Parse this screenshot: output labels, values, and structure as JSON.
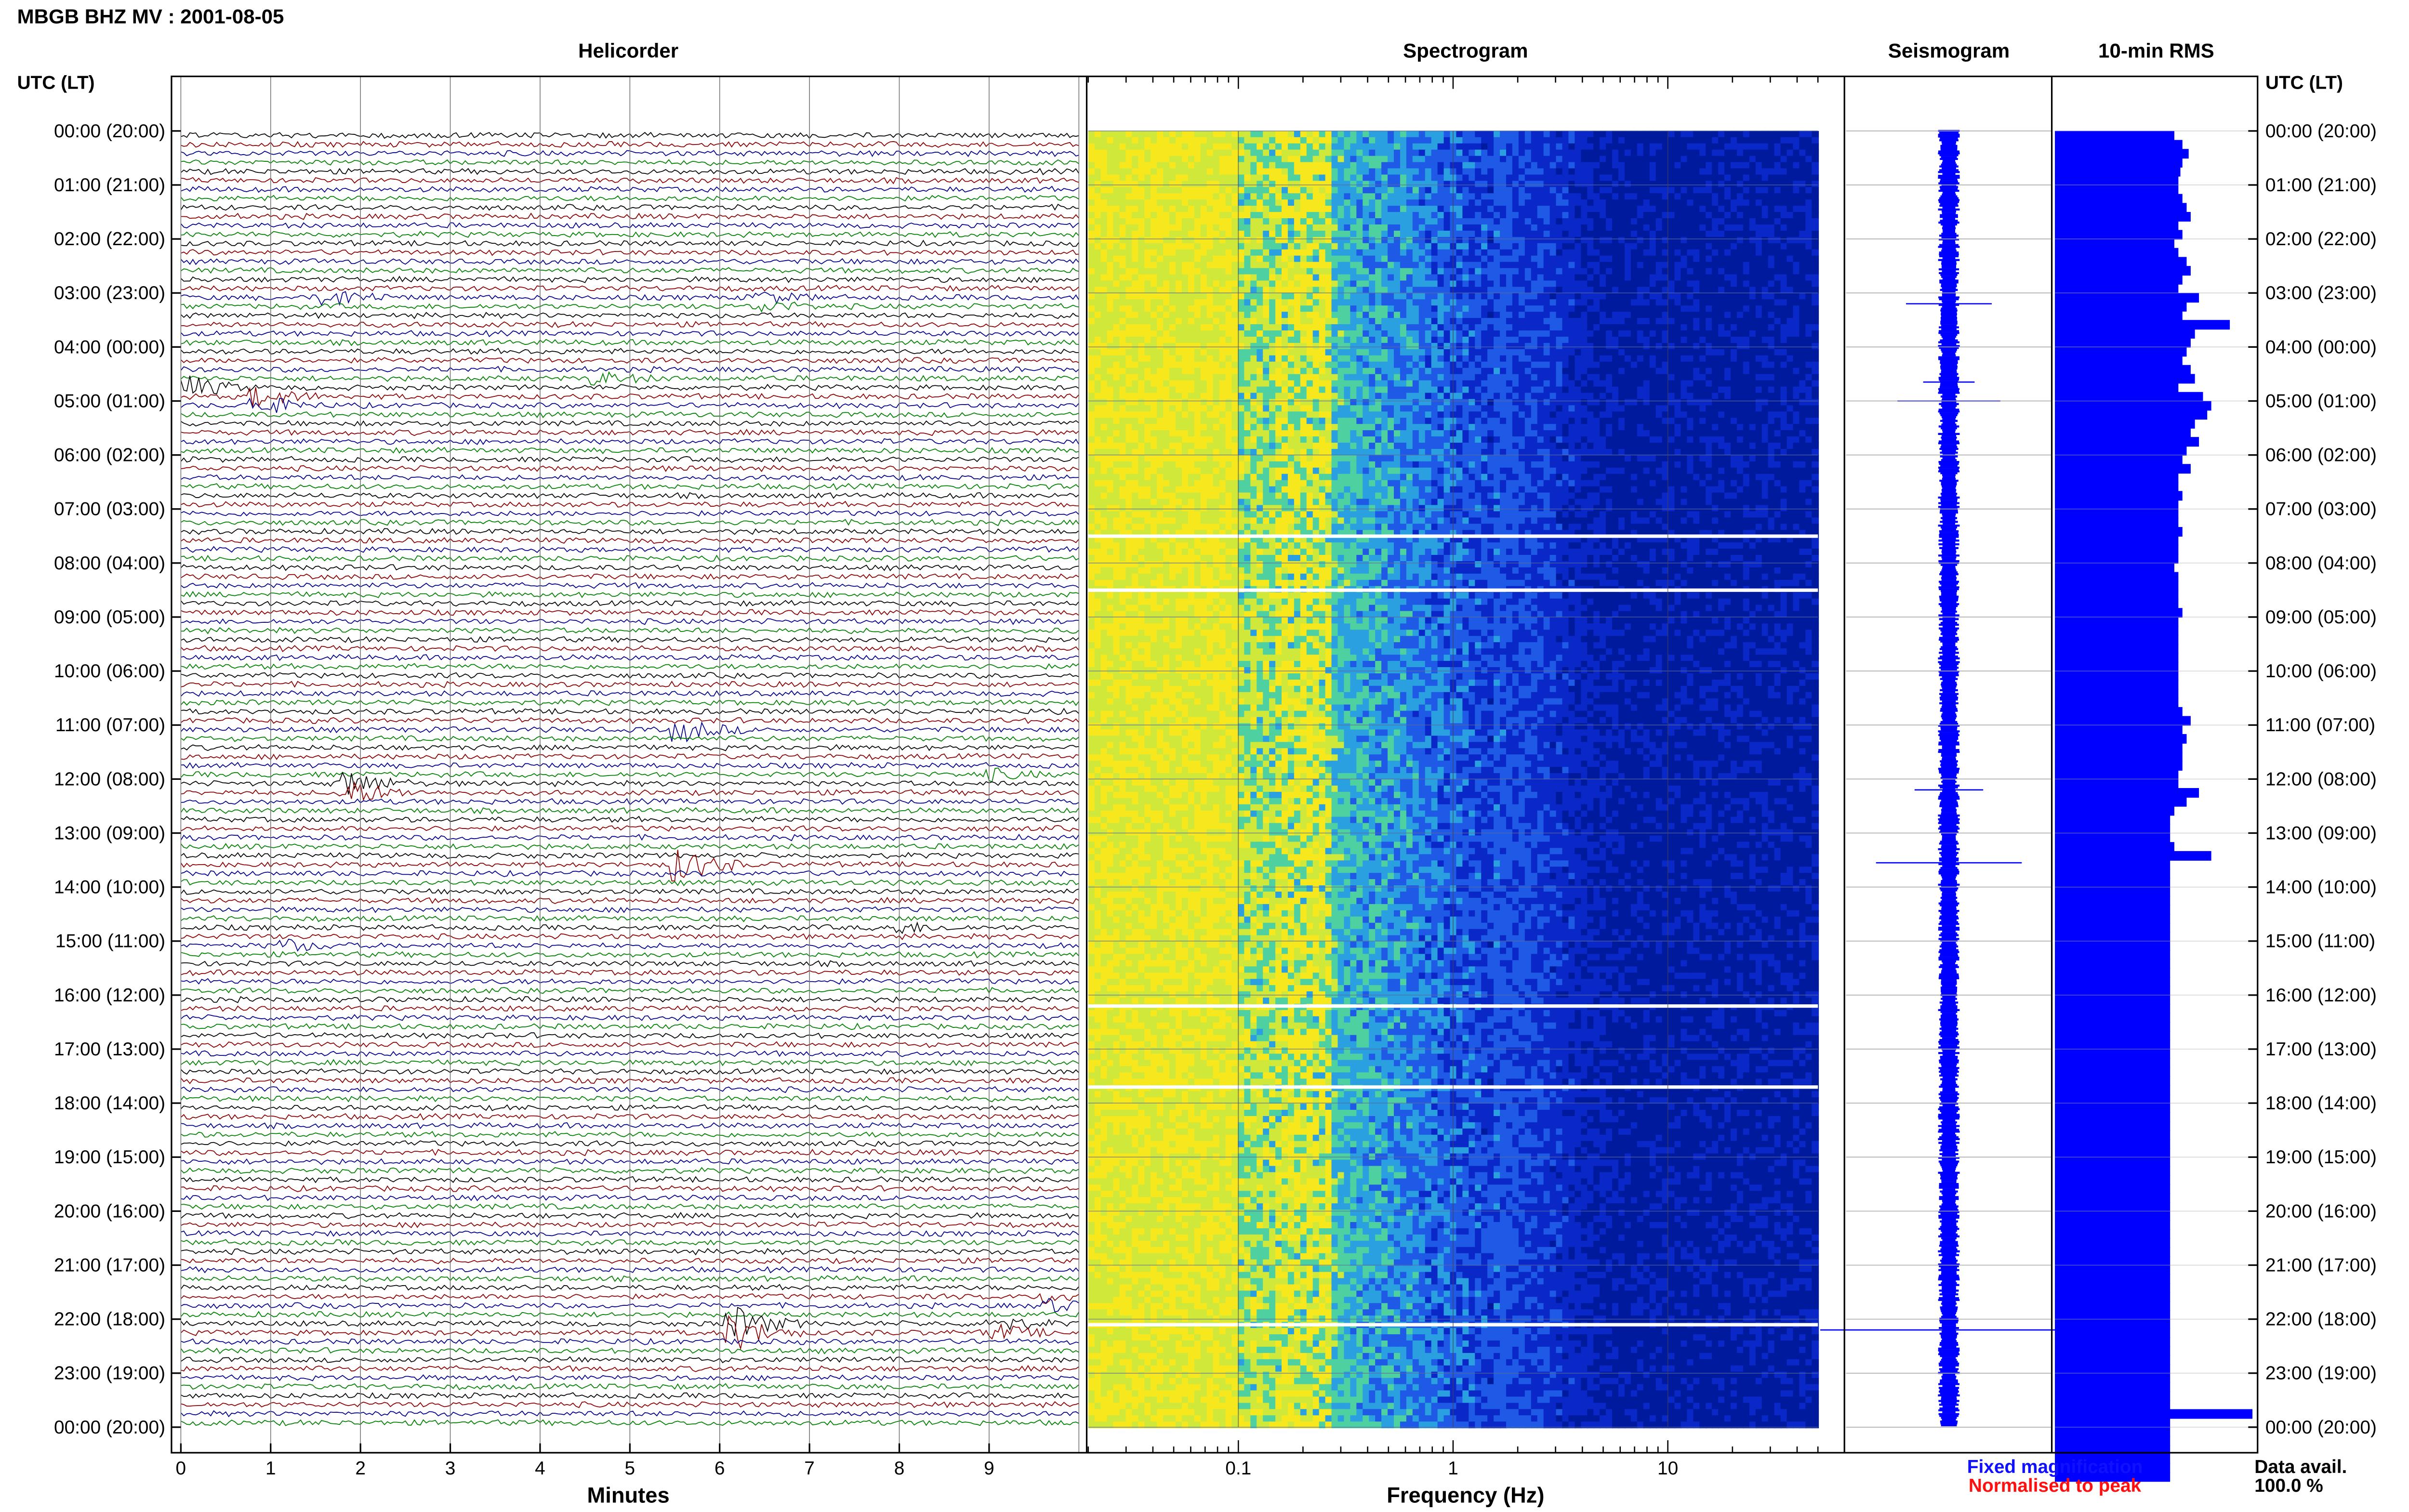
{
  "header": {
    "station_title": "MBGB BHZ MV : 2001-08-05",
    "panel_titles": {
      "helicorder": "Helicorder",
      "spectrogram": "Spectrogram",
      "seismogram": "Seismogram",
      "rms": "10-min RMS"
    },
    "left_axis_label": "UTC (LT)",
    "right_axis_label": "UTC (LT)"
  },
  "footer": {
    "helicorder_xlabel": "Minutes",
    "spectrogram_xlabel": "Frequency (Hz)",
    "legend_fixed": "Fixed magnification",
    "legend_normalised": "Normalised to peak",
    "data_avail_label": "Data avail.",
    "data_avail_value": "100.0 %"
  },
  "colors": {
    "fixed_magnification": "#1010ff",
    "normalised_to_peak": "#ff1010",
    "rms_bar": "#0000ff",
    "trace_cycle": [
      "#000000",
      "#8b0000",
      "#00008b",
      "#008000"
    ],
    "spectrogram_colormap": [
      "#f7e81e",
      "#cfe83a",
      "#4fd0a0",
      "#2aa0e0",
      "#1e5ae6",
      "#0a28c8",
      "#001a9e"
    ]
  },
  "chart_data": {
    "type": "multi-panel seismic summary",
    "time_labels": [
      "00:00 (20:00)",
      "01:00 (21:00)",
      "02:00 (22:00)",
      "03:00 (23:00)",
      "04:00 (00:00)",
      "05:00 (01:00)",
      "06:00 (02:00)",
      "07:00 (03:00)",
      "08:00 (04:00)",
      "09:00 (05:00)",
      "10:00 (06:00)",
      "11:00 (07:00)",
      "12:00 (08:00)",
      "13:00 (09:00)",
      "14:00 (10:00)",
      "15:00 (11:00)",
      "16:00 (12:00)",
      "17:00 (13:00)",
      "18:00 (14:00)",
      "19:00 (15:00)",
      "20:00 (16:00)",
      "21:00 (17:00)",
      "22:00 (18:00)",
      "23:00 (19:00)",
      "00:00 (20:00)"
    ],
    "helicorder": {
      "type": "line",
      "xlabel": "Minutes",
      "x_ticks": [
        "0",
        "1",
        "2",
        "3",
        "4",
        "5",
        "6",
        "7",
        "8",
        "9"
      ],
      "xlim": [
        0,
        10
      ],
      "traces_count": 144,
      "events": [
        {
          "minute": 1.7,
          "hour": 3.0,
          "amp": 2.5
        },
        {
          "minute": 6.5,
          "hour": 3.05,
          "amp": 1.5
        },
        {
          "minute": 0.1,
          "hour": 4.65,
          "amp": 3.0
        },
        {
          "minute": 0.9,
          "hour": 4.95,
          "amp": 2.5
        },
        {
          "minute": 4.7,
          "hour": 4.5,
          "amp": 1.5
        },
        {
          "minute": 5.6,
          "hour": 11.0,
          "amp": 3.0
        },
        {
          "minute": 1.9,
          "hour": 12.05,
          "amp": 3.5
        },
        {
          "minute": 9.0,
          "hour": 11.8,
          "amp": 1.5
        },
        {
          "minute": 5.6,
          "hour": 13.5,
          "amp": 4.5
        },
        {
          "minute": 8.0,
          "hour": 14.7,
          "amp": 1.5
        },
        {
          "minute": 1.2,
          "hour": 15.0,
          "amp": 1.5
        },
        {
          "minute": 6.2,
          "hour": 22.05,
          "amp": 4.5
        },
        {
          "minute": 9.1,
          "hour": 22.05,
          "amp": 2.0
        },
        {
          "minute": 9.7,
          "hour": 21.6,
          "amp": 1.5
        }
      ]
    },
    "spectrogram": {
      "type": "heatmap",
      "xlabel": "Frequency (Hz)",
      "x_scale": "log",
      "xlim": [
        0.02,
        50
      ],
      "x_ticks": [
        "0.1",
        "1",
        "10"
      ],
      "gap_hours": [
        7.5,
        8.5,
        16.2,
        17.7,
        22.1
      ]
    },
    "seismogram": {
      "type": "line",
      "spikes": [
        {
          "hour": 3.2,
          "amp": 0.5
        },
        {
          "hour": 4.65,
          "amp": 0.3
        },
        {
          "hour": 5.0,
          "amp": 0.6
        },
        {
          "hour": 12.2,
          "amp": 0.4
        },
        {
          "hour": 13.55,
          "amp": 0.85
        },
        {
          "hour": 22.2,
          "amp": 1.5
        }
      ]
    },
    "rms": {
      "type": "bar",
      "orientation": "horizontal",
      "interval_minutes": 10,
      "bars_count": 144,
      "xlim": [
        0,
        1
      ],
      "values": [
        0.58,
        0.62,
        0.65,
        0.62,
        0.61,
        0.6,
        0.6,
        0.62,
        0.64,
        0.66,
        0.6,
        0.62,
        0.58,
        0.6,
        0.64,
        0.66,
        0.62,
        0.6,
        0.7,
        0.64,
        0.62,
        0.85,
        0.68,
        0.66,
        0.64,
        0.62,
        0.66,
        0.68,
        0.6,
        0.72,
        0.76,
        0.74,
        0.68,
        0.66,
        0.7,
        0.64,
        0.62,
        0.66,
        0.6,
        0.6,
        0.62,
        0.6,
        0.6,
        0.6,
        0.62,
        0.6,
        0.6,
        0.6,
        0.58,
        0.6,
        0.6,
        0.6,
        0.6,
        0.62,
        0.6,
        0.6,
        0.6,
        0.6,
        0.6,
        0.6,
        0.6,
        0.6,
        0.6,
        0.6,
        0.62,
        0.66,
        0.62,
        0.64,
        0.62,
        0.62,
        0.62,
        0.6,
        0.6,
        0.7,
        0.64,
        0.58,
        0.56,
        0.56,
        0.56,
        0.58,
        0.76,
        0.56,
        0.56,
        0.56,
        0.56,
        0.56,
        0.56,
        0.56,
        0.56,
        0.56,
        0.56,
        0.56,
        0.56,
        0.56,
        0.56,
        0.56,
        0.56,
        0.56,
        0.56,
        0.56,
        0.56,
        0.56,
        0.56,
        0.56,
        0.56,
        0.56,
        0.56,
        0.56,
        0.56,
        0.56,
        0.56,
        0.56,
        0.56,
        0.56,
        0.56,
        0.56,
        0.56,
        0.56,
        0.56,
        0.56,
        0.56,
        0.56,
        0.56,
        0.56,
        0.56,
        0.56,
        0.56,
        0.56,
        0.56,
        0.56,
        0.56,
        0.56,
        0.56,
        0.56,
        0.56,
        0.56,
        0.56,
        0.56,
        0.56,
        0.56,
        0.56,
        0.56,
        0.96,
        0.56,
        0.56,
        0.56,
        0.56,
        0.56,
        0.56,
        0.56
      ]
    }
  }
}
